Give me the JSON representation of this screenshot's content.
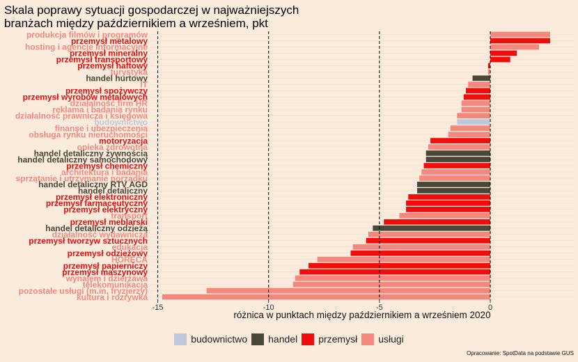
{
  "chart_data": {
    "type": "bar",
    "orientation": "horizontal",
    "title": "Skala poprawy sytuacji gospodarczej w najważniejszych\nbranżach między październikiem a wrześniem, pkt",
    "xlabel": "różnica w punktach między październikiem a wrześniem 2020",
    "xlim": [
      -15.3,
      3.8
    ],
    "xticks": [
      -15,
      -10,
      -5,
      0
    ],
    "xtick_labels": [
      "-15",
      "-10",
      "-5",
      "0"
    ],
    "reference_lines": [
      -15,
      -10,
      -5,
      0
    ],
    "legend_position": "bottom",
    "legend": [
      {
        "key": "budownictwo",
        "label": "budownictwo"
      },
      {
        "key": "handel",
        "label": "handel"
      },
      {
        "key": "przemysl",
        "label": "przemysł"
      },
      {
        "key": "uslugi",
        "label": "usługi"
      }
    ],
    "colors": {
      "budownictwo": "#BFC8DA",
      "handel": "#4A4738",
      "przemysl": "#F20D0D",
      "uslugi": "#F4877E"
    },
    "label_colors": {
      "budownictwo": "#BFC8DA",
      "handel": "#4A4738",
      "przemysl": "#E01010",
      "uslugi": "#F08A82"
    },
    "bars": [
      {
        "label": "produkcja filmów i programów",
        "value": 2.7,
        "group": "uslugi"
      },
      {
        "label": "przemysł metalowy",
        "value": 2.7,
        "group": "przemysl"
      },
      {
        "label": "hosting i agencje informacyjne",
        "value": 2.2,
        "group": "uslugi"
      },
      {
        "label": "przemysł mineralny",
        "value": 1.2,
        "group": "przemysl"
      },
      {
        "label": "przemysł transportowy",
        "value": 0.9,
        "group": "przemysl"
      },
      {
        "label": "przemysł haftowy",
        "value": -0.1,
        "group": "przemysl"
      },
      {
        "label": "turystyka",
        "value": -0.1,
        "group": "uslugi"
      },
      {
        "label": "handel hurtowy",
        "value": -0.8,
        "group": "handel"
      },
      {
        "label": "IT",
        "value": -1.0,
        "group": "uslugi"
      },
      {
        "label": "przemysł spożywczy",
        "value": -1.1,
        "group": "przemysl"
      },
      {
        "label": "przemysł wyrobów metalowych",
        "value": -1.2,
        "group": "przemysl"
      },
      {
        "label": "działalność firm HR",
        "value": -1.3,
        "group": "uslugi"
      },
      {
        "label": "reklama i badania rynku",
        "value": -1.3,
        "group": "uslugi"
      },
      {
        "label": "działalność prawnicza i księgowa",
        "value": -1.5,
        "group": "uslugi"
      },
      {
        "label": "budownictwo",
        "value": -1.5,
        "group": "budownictwo"
      },
      {
        "label": "finanse i ubezpieczenia",
        "value": -1.8,
        "group": "uslugi"
      },
      {
        "label": "obsługa rynku nieruchomości",
        "value": -1.9,
        "group": "uslugi"
      },
      {
        "label": "motoryzacja",
        "value": -2.7,
        "group": "przemysl"
      },
      {
        "label": "opieka zdrowotna",
        "value": -2.8,
        "group": "uslugi"
      },
      {
        "label": "handel detaliczny żywnością",
        "value": -2.9,
        "group": "handel"
      },
      {
        "label": "handel detaliczny samochodowy",
        "value": -2.9,
        "group": "handel"
      },
      {
        "label": "przemysł chemiczny",
        "value": -3.0,
        "group": "przemysl"
      },
      {
        "label": "architektura i badania",
        "value": -3.1,
        "group": "uslugi"
      },
      {
        "label": "sprzątanie i utrzymanie porządku",
        "value": -3.2,
        "group": "uslugi"
      },
      {
        "label": "handel detaliczny RTV AGD",
        "value": -3.3,
        "group": "handel"
      },
      {
        "label": "handel detaliczny",
        "value": -3.3,
        "group": "handel"
      },
      {
        "label": "przemysł elektroniczny",
        "value": -3.7,
        "group": "przemysl"
      },
      {
        "label": "przemysł farmaceutyczny",
        "value": -3.8,
        "group": "przemysl"
      },
      {
        "label": "przemysł elektryczny",
        "value": -3.8,
        "group": "przemysl"
      },
      {
        "label": "transport",
        "value": -4.1,
        "group": "uslugi"
      },
      {
        "label": "przemysł meblarski",
        "value": -4.8,
        "group": "przemysl"
      },
      {
        "label": "handel detaliczny odzieżą",
        "value": -5.3,
        "group": "handel"
      },
      {
        "label": "działalność wydawnicza",
        "value": -5.5,
        "group": "uslugi"
      },
      {
        "label": "przemysł tworzyw sztucznych",
        "value": -5.6,
        "group": "przemysl"
      },
      {
        "label": "edukacja",
        "value": -6.2,
        "group": "uslugi"
      },
      {
        "label": "przemysł odzieżowy",
        "value": -6.3,
        "group": "przemysl"
      },
      {
        "label": "HORECA",
        "value": -7.8,
        "group": "uslugi"
      },
      {
        "label": "przemysł papierniczy",
        "value": -8.2,
        "group": "przemysl"
      },
      {
        "label": "przemysł maszynowy",
        "value": -8.6,
        "group": "przemysl"
      },
      {
        "label": "wynajem i dzierżawa",
        "value": -8.8,
        "group": "uslugi"
      },
      {
        "label": "telekomunikacja",
        "value": -8.9,
        "group": "uslugi"
      },
      {
        "label": "pozostałe usługi (m.in. fryzjerzy)",
        "value": -12.8,
        "group": "uslugi"
      },
      {
        "label": "kultura i rozrywka",
        "value": -14.8,
        "group": "uslugi"
      }
    ]
  },
  "footer": {
    "source": "Opracowanie: SpotData na podstawie GUS"
  }
}
